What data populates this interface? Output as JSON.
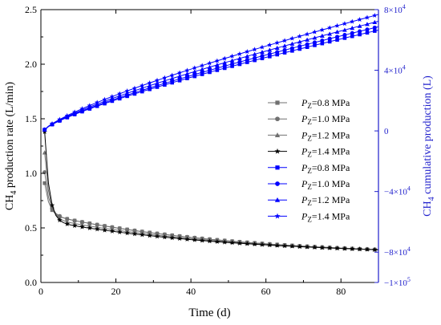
{
  "chart_data": {
    "type": "line",
    "xlabel": "Time (d)",
    "xlim": [
      0,
      90
    ],
    "xticks": [
      "0",
      "20",
      "40",
      "60",
      "80"
    ],
    "ylabel_left": {
      "base": "CH",
      "sub": "4",
      "rest": " production rate (L/min)"
    },
    "ylim_left": [
      0,
      2.5
    ],
    "yticks_left": [
      "0.0",
      "0.5",
      "1.0",
      "1.5",
      "2.0",
      "2.5"
    ],
    "ylabel_right": {
      "base": "CH",
      "sub": "4",
      "rest": " cumulative production (L)"
    },
    "ylim_right": [
      -100000,
      80000
    ],
    "yticks_right": [
      {
        "value": 80000,
        "mant": "8",
        "exp": "4",
        "sign": ""
      },
      {
        "value": 40000,
        "mant": "4",
        "exp": "4",
        "sign": ""
      },
      {
        "value": 0,
        "mant": "0",
        "exp": "",
        "sign": ""
      },
      {
        "value": -40000,
        "mant": "4",
        "exp": "4",
        "sign": "−"
      },
      {
        "value": -80000,
        "mant": "8",
        "exp": "4",
        "sign": "−"
      },
      {
        "value": -100000,
        "mant": "1",
        "exp": "5",
        "sign": "−"
      }
    ],
    "right_axis_color": "#1f1fcc",
    "gray_color": "#707070",
    "black_color": "#000000",
    "blue_color": "#0000ff",
    "legend_position": "center-right",
    "series": [
      {
        "name": "P_Z=0.8 MPa",
        "label_sub": "Z",
        "label_value": "=0.8 MPa",
        "axis": "left",
        "marker": "square",
        "color": "#707070",
        "start": 0.91,
        "a": 0.39,
        "b": 0.75,
        "end": 0.3
      },
      {
        "name": "P_Z=1.0 MPa",
        "label_sub": "Z",
        "label_value": "=1.0 MPa",
        "axis": "left",
        "marker": "circle",
        "color": "#707070",
        "start": 1.01,
        "a": 0.39,
        "b": 0.83,
        "end": 0.3
      },
      {
        "name": "P_Z=1.2 MPa",
        "label_sub": "Z",
        "label_value": "=1.2 MPa",
        "axis": "left",
        "marker": "triangle",
        "color": "#707070",
        "start": 1.19,
        "a": 0.35,
        "b": 0.92,
        "end": 0.3
      },
      {
        "name": "P_Z=1.4 MPa",
        "label_sub": "Z",
        "label_value": "=1.4 MPa",
        "axis": "left",
        "marker": "star",
        "color": "#000000",
        "start": 1.38,
        "a": 0.32,
        "b": 1.02,
        "end": 0.3
      },
      {
        "name": "P_Z=0.8 MPa",
        "label_sub": "Z",
        "label_value": "=0.8 MPa",
        "axis": "right",
        "marker": "square",
        "color": "#0000ff",
        "start": 800,
        "end": 66500
      },
      {
        "name": "P_Z=1.0 MPa",
        "label_sub": "Z",
        "label_value": "=1.0 MPa",
        "axis": "right",
        "marker": "circle",
        "color": "#0000ff",
        "start": 800,
        "end": 68700
      },
      {
        "name": "P_Z=1.2 MPa",
        "label_sub": "Z",
        "label_value": "=1.2 MPa",
        "axis": "right",
        "marker": "triangle",
        "color": "#0000ff",
        "start": 800,
        "end": 72300
      },
      {
        "name": "P_Z=1.4 MPa",
        "label_sub": "Z",
        "label_value": "=1.4 MPa",
        "axis": "right",
        "marker": "star",
        "color": "#0000ff",
        "start": 800,
        "end": 76800
      }
    ],
    "label_prefix": "P"
  }
}
